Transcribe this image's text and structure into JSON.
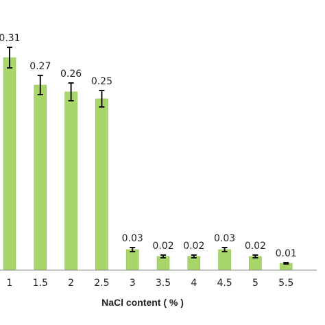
{
  "chart_data": {
    "type": "bar",
    "categories": [
      "1",
      "1.5",
      "2",
      "2.5",
      "3",
      "3.5",
      "4",
      "4.5",
      "5",
      "5.5"
    ],
    "values": [
      0.31,
      0.27,
      0.26,
      0.25,
      0.03,
      0.02,
      0.02,
      0.03,
      0.02,
      0.01
    ],
    "errors": [
      0.015,
      0.014,
      0.013,
      0.012,
      0.003,
      0.002,
      0.002,
      0.003,
      0.002,
      0.001
    ],
    "data_labels": [
      "0.31",
      "0.27",
      "0.26",
      "0.25",
      "0.03",
      "0.02",
      "0.02",
      "0.03",
      "0.02",
      "0.01"
    ],
    "xlabel": "NaCl content ( % )",
    "ylabel": "",
    "title": "",
    "ylim": [
      0,
      0.38
    ],
    "bar_color": "#a9d66b",
    "bar_edge_color": "#8fbf4f",
    "error_bar_color": "#111111",
    "grid": false,
    "legend": "none"
  }
}
